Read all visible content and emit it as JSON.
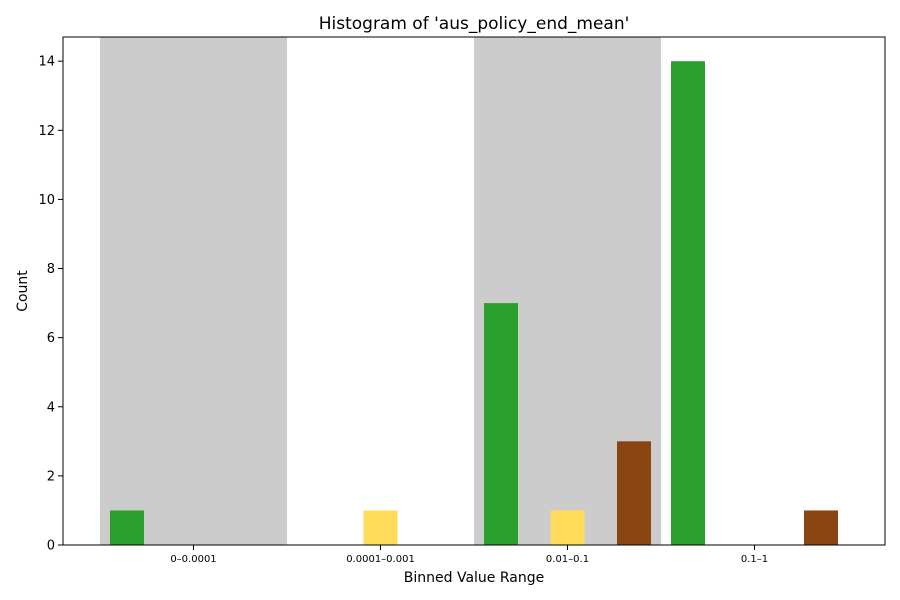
{
  "chart_data": {
    "type": "bar",
    "title": "Histogram of 'aus_policy_end_mean'",
    "xlabel": "Binned Value Range",
    "ylabel": "Count",
    "categories": [
      "0–0.0001",
      "0.0001–0.001",
      "0.01–0.1",
      "0.1–1"
    ],
    "ylim": [
      0,
      14.7
    ],
    "yticks": [
      0,
      2,
      4,
      6,
      8,
      10,
      12,
      14
    ],
    "grid": false,
    "legend": "none",
    "shaded_categories": [
      "0–0.0001",
      "0.01–0.1"
    ],
    "shade_color": "#cccccc",
    "series": [
      {
        "color": "#2ca02c",
        "values": [
          1,
          0,
          7,
          14
        ]
      },
      {
        "color": "#ffdc5a",
        "values": [
          0,
          1,
          1,
          0
        ]
      },
      {
        "color": "#8b4513",
        "values": [
          0,
          0,
          3,
          1
        ]
      }
    ]
  }
}
